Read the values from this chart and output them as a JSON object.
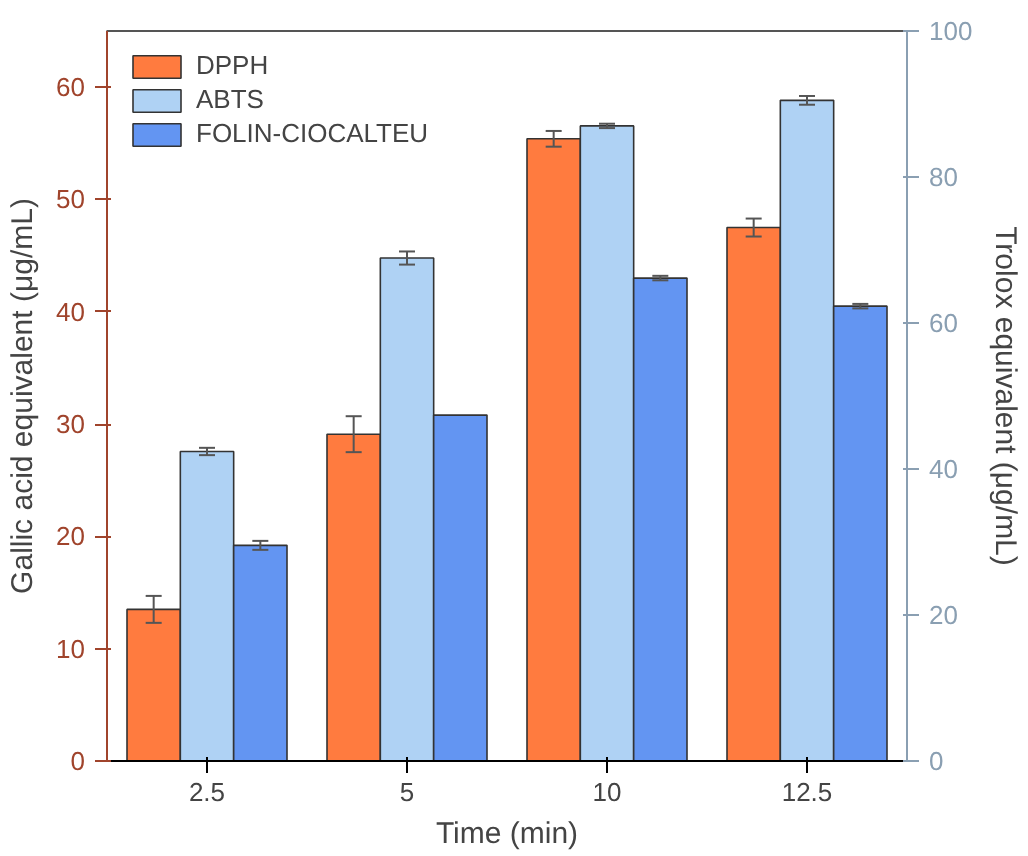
{
  "chart_data": {
    "type": "bar",
    "xlabel": "Time (min)",
    "ylabel": "Gallic acid equivalent (μg/mL)",
    "y2label": "Trolox equivalent (μg/mL)",
    "categories": [
      "2.5",
      "5",
      "10",
      "12.5"
    ],
    "series": [
      {
        "name": "DPPH",
        "color": "#ff7b3f",
        "values": [
          13.5,
          29.1,
          55.4,
          47.5
        ],
        "errors": [
          1.2,
          1.6,
          0.7,
          0.8
        ]
      },
      {
        "name": "ABTS",
        "color": "#afd2f4",
        "values": [
          42.4,
          68.9,
          87.0,
          90.5
        ],
        "errors": [
          0.5,
          0.9,
          0.3,
          0.6
        ],
        "axis": "y2"
      },
      {
        "name": "FOLIN-CIOCALTEU",
        "color": "#6395f2",
        "values": [
          19.2,
          30.8,
          43.0,
          40.5
        ],
        "errors": [
          0.4,
          null,
          0.2,
          0.2
        ]
      }
    ],
    "ylim": [
      0,
      65
    ],
    "yticks": [
      0,
      10,
      20,
      30,
      40,
      50,
      60
    ],
    "y2lim": [
      0,
      100
    ],
    "y2ticks": [
      0,
      20,
      40,
      60,
      80,
      100
    ],
    "legend": "top left",
    "grid": false
  }
}
